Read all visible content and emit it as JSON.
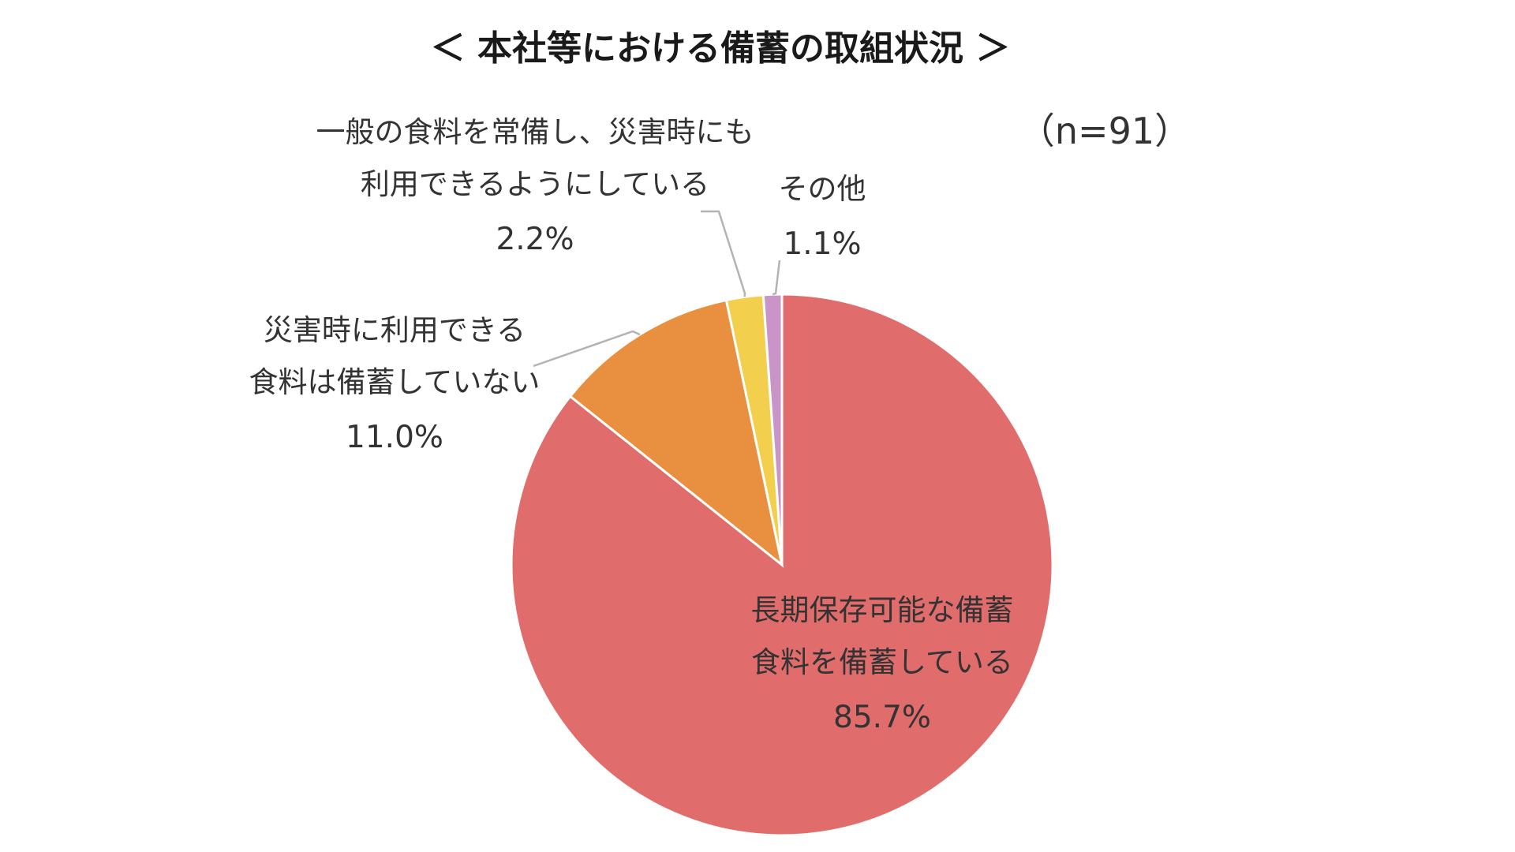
{
  "chart_data": {
    "type": "pie",
    "title": "＜ 本社等における備蓄の取組状況 ＞",
    "annotation": "（n=91）",
    "start_angle_deg": 0,
    "direction": "clockwise",
    "slices": [
      {
        "key": "long-term",
        "label_lines": [
          "長期保存可能な備蓄",
          "食料を備蓄している"
        ],
        "value": 85.7,
        "value_label": "85.7%",
        "color": "#E06C6C"
      },
      {
        "key": "no-stock",
        "label_lines": [
          "災害時に利用できる",
          "食料は備蓄していない"
        ],
        "value": 11.0,
        "value_label": "11.0%",
        "color": "#E8903F"
      },
      {
        "key": "general",
        "label_lines": [
          "一般の食料を常備し、災害時にも",
          "利用できるようにしている"
        ],
        "value": 2.2,
        "value_label": "2.2%",
        "color": "#F2D04E"
      },
      {
        "key": "other",
        "label_lines": [
          "その他"
        ],
        "value": 1.1,
        "value_label": "1.1%",
        "color": "#C994C7"
      }
    ]
  }
}
